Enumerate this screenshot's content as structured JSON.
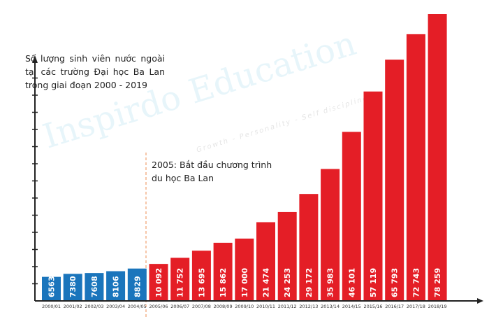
{
  "chart_data": {
    "type": "bar",
    "title": "Số lượng sinh viên nước ngoài tại các trường Đại học Ba Lan trong giai đoạn 2000 - 2019",
    "xlabel": "",
    "ylabel": "",
    "ylim": [
      0,
      80000
    ],
    "grid": false,
    "categories": [
      "2000/01",
      "2001/02",
      "2002/03",
      "2003/04",
      "2004/05",
      "2005/06",
      "2006/07",
      "2007/08",
      "2008/09",
      "2009/10",
      "2010/11",
      "2011/12",
      "2012/13",
      "2013/14",
      "2014/15",
      "2015/16",
      "2016/17",
      "2017/18",
      "2018/19"
    ],
    "values": [
      6563,
      7380,
      7608,
      8106,
      8829,
      10092,
      11752,
      13695,
      15862,
      17000,
      21474,
      24253,
      29172,
      35983,
      46101,
      57119,
      65793,
      72743,
      78259
    ],
    "value_labels": [
      "6563",
      "7380",
      "7608",
      "8106",
      "8829",
      "10 092",
      "11 752",
      "13 695",
      "15 862",
      "17 000",
      "21 474",
      "24 253",
      "29 172",
      "35 983",
      "46 101",
      "57 119",
      "65 793",
      "72 743",
      "78 259"
    ],
    "annotation": "2005: Bắt đầu chương trình du học Ba Lan",
    "annotation_at": "2005/06",
    "colors": {
      "before_2005": "#1a75bc",
      "after_2005": "#e41e26",
      "divider": "#f0a070"
    }
  },
  "watermark": {
    "text": "Inspirdo Education",
    "subtitle": "Growth - Personality - Self discipline"
  }
}
